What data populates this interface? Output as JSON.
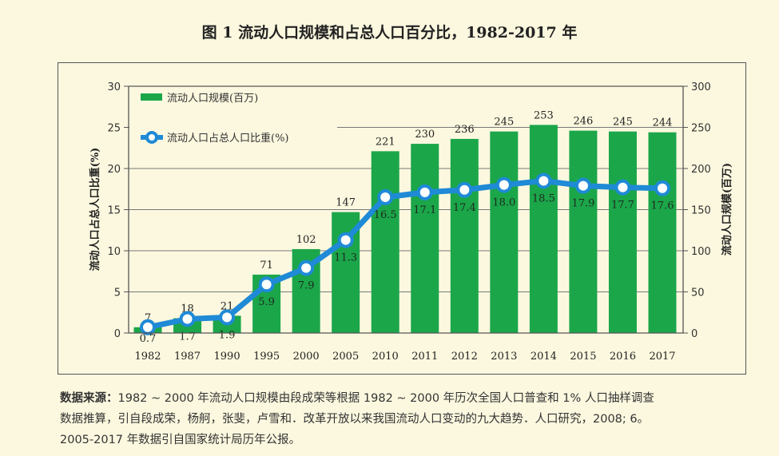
{
  "title": "图 1  流动人口规模和占总人口百分比，1982-2017 年",
  "source": {
    "label": "数据来源：",
    "lines": [
      "1982 ~ 2000 年流动人口规模由段成荣等根据 1982 ~ 2000 年历次全国人口普查和 1% 人口抽样调查",
      "数据推算，引自段成荣，杨舸，张斐，卢雪和．改革开放以来我国流动人口变动的九大趋势．人口研究，2008; 6。",
      "2005-2017 年数据引自国家统计局历年公报。"
    ]
  },
  "chart_data": {
    "type": "bar+line",
    "categories": [
      "1982",
      "1987",
      "1990",
      "1995",
      "2000",
      "2005",
      "2010",
      "2011",
      "2012",
      "2013",
      "2014",
      "2015",
      "2016",
      "2017"
    ],
    "series": [
      {
        "name": "流动人口规模(百万)",
        "type": "bar",
        "axis": "right",
        "color": "#1ba64a",
        "values": [
          7,
          18,
          21,
          71,
          102,
          147,
          221,
          230,
          236,
          245,
          253,
          246,
          245,
          244
        ]
      },
      {
        "name": "流动人口占总人口比重(%)",
        "type": "line",
        "axis": "left",
        "color": "#1f8ad6",
        "values": [
          0.7,
          1.7,
          1.9,
          5.9,
          7.9,
          11.3,
          16.5,
          17.1,
          17.4,
          18.0,
          18.5,
          17.9,
          17.7,
          17.6
        ]
      }
    ],
    "ylabel_left": "流动人口占总人口比重(%)",
    "ylabel_right": "流动人口规模(百万)",
    "ylim_left": [
      0,
      30
    ],
    "yticks_left": [
      0,
      5,
      10,
      15,
      20,
      25,
      30
    ],
    "ylim_right": [
      0,
      300
    ],
    "yticks_right": [
      0,
      50,
      100,
      150,
      200,
      250,
      300
    ],
    "grid": true,
    "legend": "top-left"
  }
}
